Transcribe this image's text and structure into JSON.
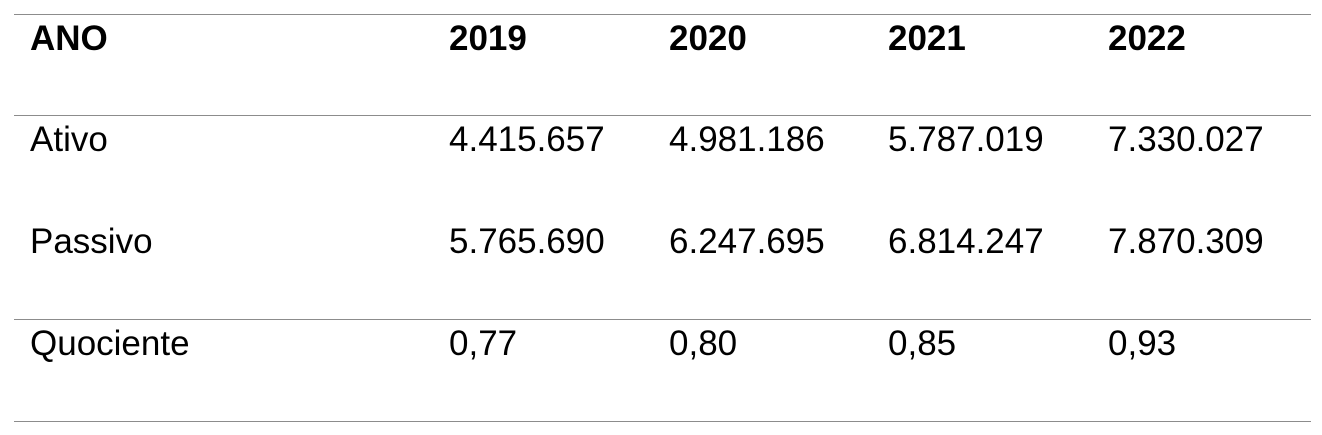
{
  "table": {
    "header": [
      "ANO",
      "2019",
      "2020",
      "2021",
      "2022"
    ],
    "rows": [
      [
        "Ativo",
        "4.415.657",
        "4.981.186",
        "5.787.019",
        "7.330.027"
      ],
      [
        "Passivo",
        "5.765.690",
        "6.247.695",
        "6.814.247",
        "7.870.309"
      ],
      [
        "Quociente",
        "0,77",
        "0,80",
        "0,85",
        "0,93"
      ]
    ]
  }
}
